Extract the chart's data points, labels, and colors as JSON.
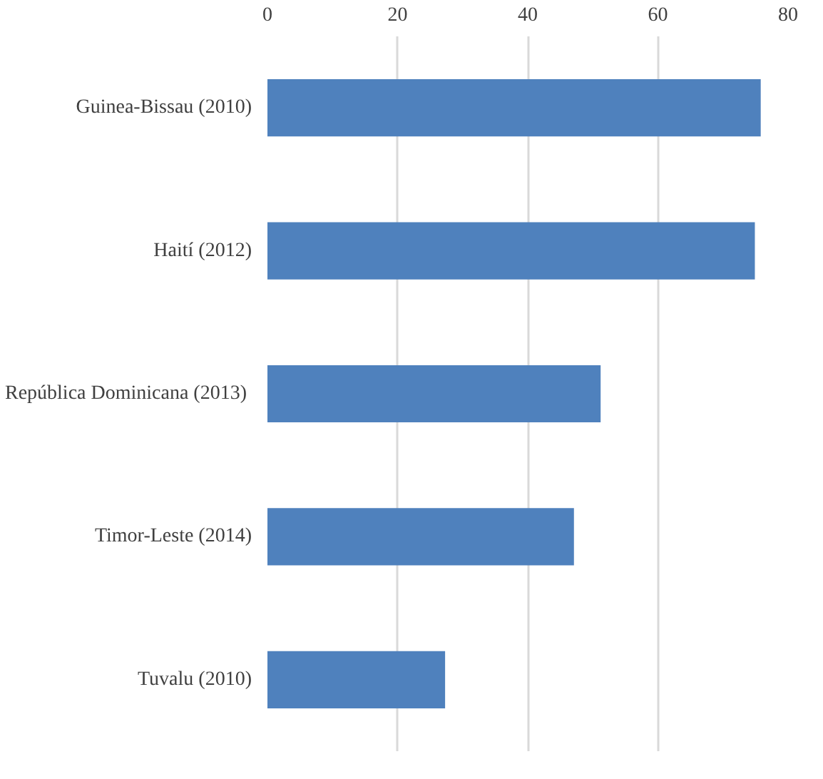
{
  "chart_data": {
    "type": "bar",
    "orientation": "horizontal",
    "categories": [
      "Guinea-Bissau (2010)",
      "Haití (2012)",
      "República Dominicana  (2013)",
      "Timor-Leste (2014)",
      "Tuvalu (2010)"
    ],
    "values": [
      75.8,
      74.9,
      51.2,
      47.1,
      27.3
    ],
    "color": "#4f81bd",
    "xlim": [
      0,
      80
    ],
    "xticks": [
      0,
      20,
      40,
      60,
      80
    ],
    "grid": "x"
  }
}
